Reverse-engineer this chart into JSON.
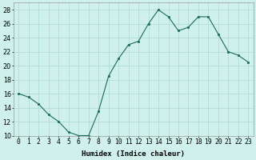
{
  "x": [
    0,
    1,
    2,
    3,
    4,
    5,
    6,
    7,
    8,
    9,
    10,
    11,
    12,
    13,
    14,
    15,
    16,
    17,
    18,
    19,
    20,
    21,
    22,
    23
  ],
  "y": [
    16,
    15.5,
    14.5,
    13,
    12,
    10.5,
    10,
    10,
    13.5,
    18.5,
    21,
    23,
    23.5,
    26,
    28,
    27,
    25,
    25.5,
    27,
    27,
    24.5,
    22,
    21.5,
    20.5
  ],
  "line_color": "#1a6b5a",
  "marker_color": "#1a6b5a",
  "bg_color": "#cff0eb",
  "grid_color": "#aad8d3",
  "xlabel": "Humidex (Indice chaleur)",
  "ylim": [
    10,
    29
  ],
  "xlim": [
    -0.5,
    23.5
  ],
  "yticks": [
    10,
    12,
    14,
    16,
    18,
    20,
    22,
    24,
    26,
    28
  ],
  "xtick_labels": [
    "0",
    "1",
    "2",
    "3",
    "4",
    "5",
    "6",
    "7",
    "8",
    "9",
    "10",
    "11",
    "12",
    "13",
    "14",
    "15",
    "16",
    "17",
    "18",
    "19",
    "20",
    "21",
    "22",
    "23"
  ],
  "label_fontsize": 6.5,
  "tick_fontsize": 5.8
}
